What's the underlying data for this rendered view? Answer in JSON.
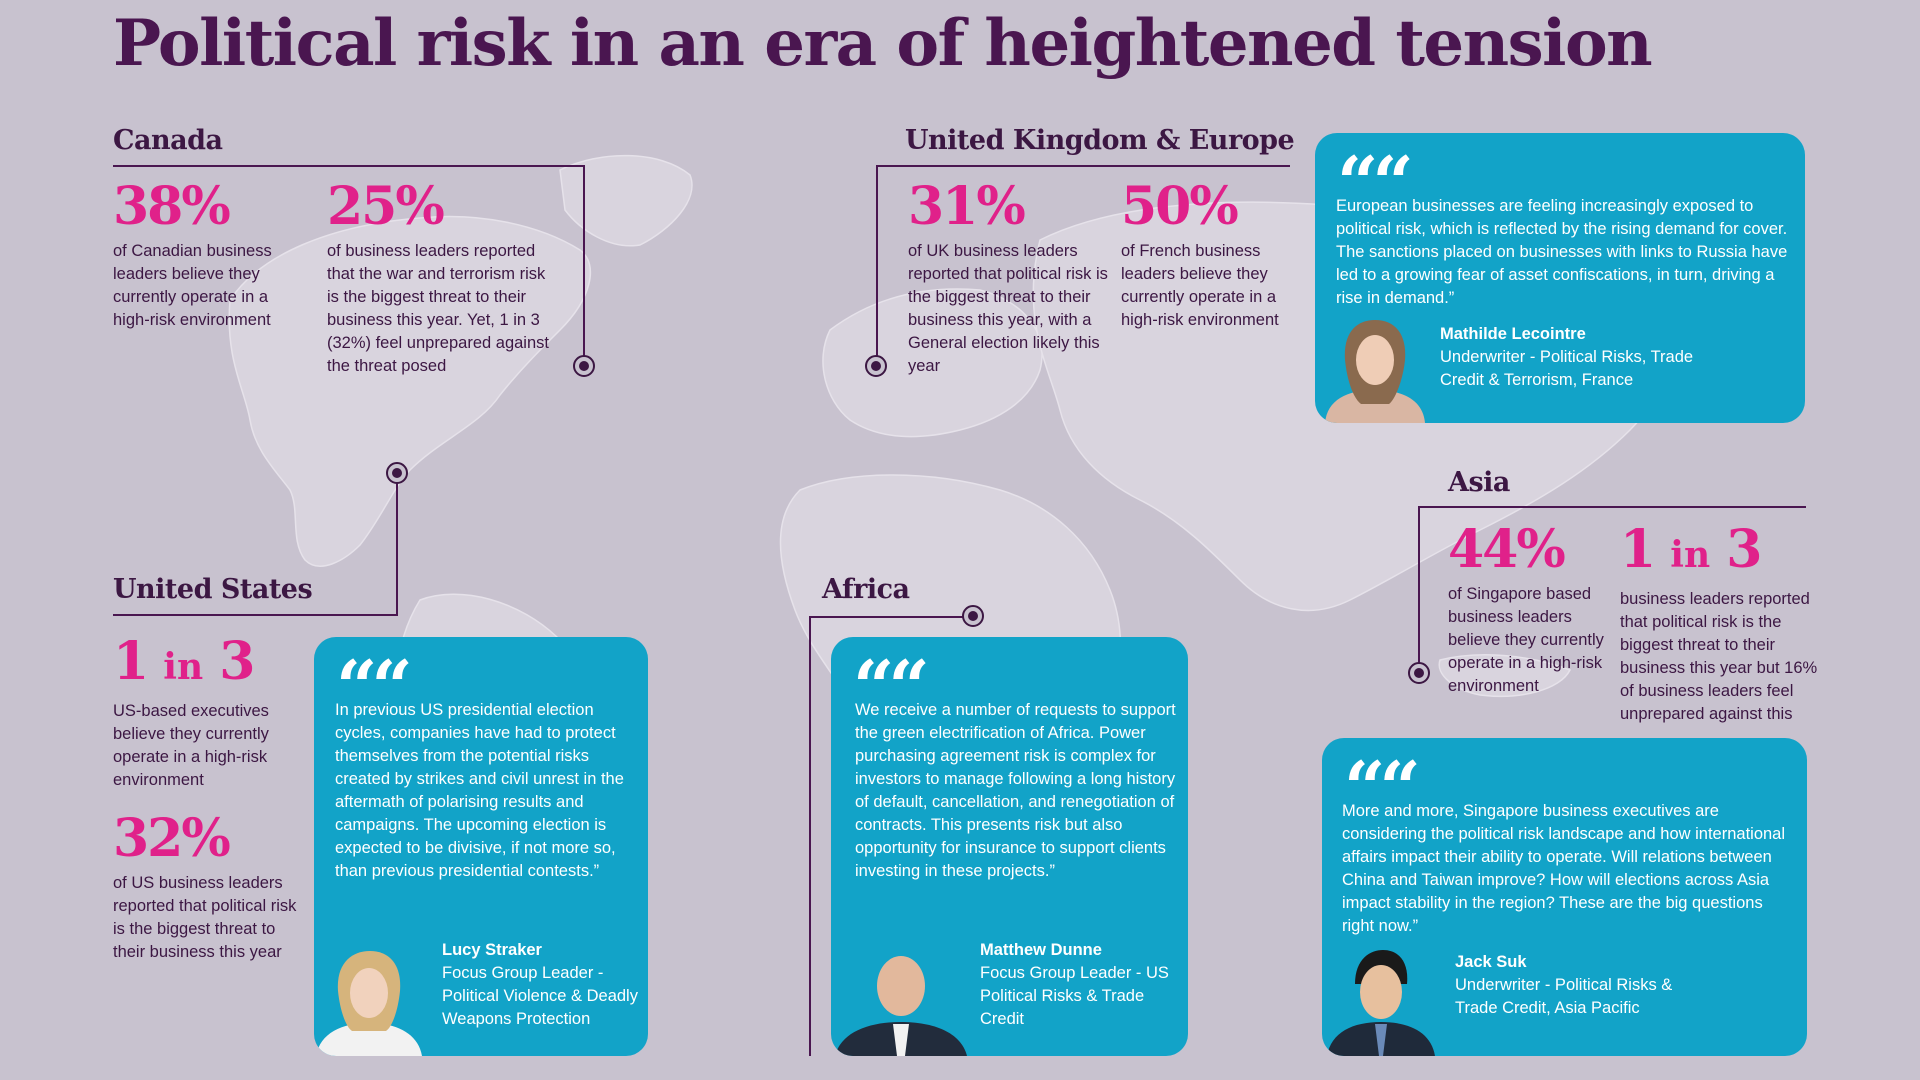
{
  "title": "Political risk in an era of heightened tension",
  "colors": {
    "background": "#c8c2cf",
    "accent": "#e0218a",
    "quote_bg": "#12a3c8",
    "heading": "#3c1743",
    "map": "#d9d4de"
  },
  "canada": {
    "heading": "Canada",
    "stat1": {
      "value": "38%",
      "text": "of Canadian business leaders believe they currently operate in a high-risk environment"
    },
    "stat2": {
      "value": "25%",
      "text": "of business leaders reported that the war and terrorism risk is the biggest threat to their business this year. Yet, 1 in 3 (32%) feel unprepared against the threat posed"
    }
  },
  "uk_europe": {
    "heading": "United Kingdom & Europe",
    "stat1": {
      "value": "31%",
      "text": "of UK business leaders reported that political risk is the biggest threat to their business this year, with a General election likely this year"
    },
    "stat2": {
      "value": "50%",
      "text": "of French business leaders believe they currently operate in a high-risk environment"
    },
    "quote": {
      "mark": "““",
      "text": "European businesses are feeling increasingly exposed to political risk, which is reflected by the rising demand for cover. The sanctions placed on businesses with links to Russia have led to a growing fear of asset confiscations, in turn, driving a rise in demand.”",
      "name": "Mathilde Lecointre",
      "role": "Underwriter - Political Risks, Trade Credit & Terrorism, France"
    }
  },
  "asia": {
    "heading": "Asia",
    "stat1": {
      "value": "44%",
      "text": "of Singapore based business leaders believe they currently operate in a high-risk environment"
    },
    "stat2": {
      "value_a": "1",
      "value_in": "in",
      "value_b": "3",
      "text": "business leaders reported that political risk is the biggest threat to their business this year but 16% of business leaders feel unprepared against this"
    },
    "quote": {
      "mark": "““",
      "text": "More and more, Singapore business executives are considering the political risk landscape and how international affairs impact their ability to operate. Will relations between China and Taiwan improve? How will elections across Asia impact stability in the region? These are the big questions right now.”",
      "name": "Jack Suk",
      "role": "Underwriter - Political Risks & Trade Credit, Asia Pacific"
    }
  },
  "united_states": {
    "heading": "United States",
    "stat1": {
      "value_a": "1",
      "value_in": "in",
      "value_b": "3",
      "text": "US-based executives believe they currently operate in a high-risk environment"
    },
    "stat2": {
      "value": "32%",
      "text": "of US business leaders reported that political risk is the biggest threat to their business this year"
    },
    "quote": {
      "mark": "““",
      "text": "In previous US presidential election cycles, companies have had to protect themselves from the potential risks created by strikes and civil unrest in the aftermath of polarising results and campaigns. The upcoming election is expected to be divisive, if not more so, than previous presidential contests.”",
      "name": "Lucy Straker",
      "role": "Focus Group Leader - Political Violence & Deadly Weapons Protection"
    }
  },
  "africa": {
    "heading": "Africa",
    "quote": {
      "mark": "““",
      "text": "We receive a number of requests to support the green electrification of Africa. Power purchasing agreement risk is complex for investors to manage following a long history of default, cancellation, and renegotiation of contracts. This presents risk but also opportunity for insurance to support clients investing in these projects.”",
      "name": "Matthew Dunne",
      "role": "Focus Group Leader - US Political Risks & Trade Credit"
    }
  }
}
